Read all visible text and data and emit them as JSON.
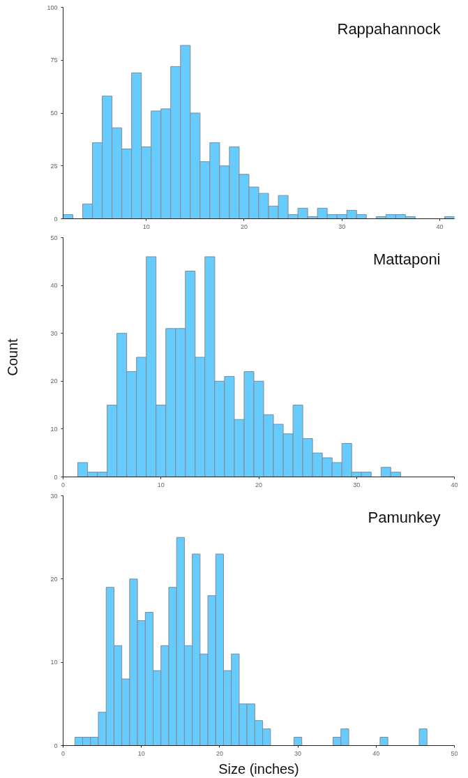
{
  "chart_data": [
    {
      "type": "histogram",
      "title": "Rappahannock",
      "color": "#66ccff",
      "bins": [
        1.5,
        2.5,
        3.5,
        4.5,
        5.5,
        6.5,
        7.5,
        8.5,
        9.5,
        10.5,
        11.5,
        12.5,
        13.5,
        14.5,
        15.5,
        16.5,
        17.5,
        18.5,
        19.5,
        20.5,
        21.5,
        22.5,
        23.5,
        24.5,
        25.5,
        26.5,
        27.5,
        28.5,
        29.5,
        30.5,
        31.5,
        32.5,
        33.5,
        34.5,
        35.5,
        36.5,
        37.5,
        38.5,
        39.5,
        40.5,
        41.5
      ],
      "values": [
        2,
        0,
        7,
        36,
        58,
        43,
        33,
        69,
        34,
        51,
        52,
        72,
        82,
        50,
        27,
        36,
        25,
        34,
        21,
        15,
        12,
        6,
        11,
        2,
        5,
        1,
        5,
        2,
        2,
        4,
        2,
        0,
        1,
        2,
        2,
        1,
        0,
        0,
        0,
        1
      ],
      "xlim": [
        1.5,
        41.5
      ],
      "xticks": [
        10,
        20,
        30,
        40
      ],
      "ylim": [
        0,
        100
      ],
      "yticks": [
        0,
        25,
        50,
        75,
        100
      ],
      "grid": false
    },
    {
      "type": "histogram",
      "title": "Mattaponi",
      "ylabel": "Count",
      "color": "#66ccff",
      "bins": [
        1.5,
        2.5,
        3.5,
        4.5,
        5.5,
        6.5,
        7.5,
        8.5,
        9.5,
        10.5,
        11.5,
        12.5,
        13.5,
        14.5,
        15.5,
        16.5,
        17.5,
        18.5,
        19.5,
        20.5,
        21.5,
        22.5,
        23.5,
        24.5,
        25.5,
        26.5,
        27.5,
        28.5,
        29.5,
        30.5,
        31.5,
        32.5,
        33.5,
        34.5
      ],
      "values": [
        3,
        1,
        1,
        15,
        30,
        22,
        25,
        46,
        15,
        31,
        31,
        43,
        25,
        46,
        20,
        21,
        12,
        22,
        20,
        13,
        11,
        9,
        15,
        8,
        5,
        4,
        3,
        7,
        1,
        1,
        0,
        2,
        1
      ],
      "xlim": [
        0,
        40
      ],
      "xticks": [
        0,
        10,
        20,
        30,
        40
      ],
      "ylim": [
        0,
        50
      ],
      "yticks": [
        0,
        10,
        20,
        30,
        40,
        50
      ],
      "grid": false
    },
    {
      "type": "histogram",
      "title": "Pamunkey",
      "xlabel": "Size (inches)",
      "color": "#66ccff",
      "bins": [
        1.5,
        2.5,
        3.5,
        4.5,
        5.5,
        6.5,
        7.5,
        8.5,
        9.5,
        10.5,
        11.5,
        12.5,
        13.5,
        14.5,
        15.5,
        16.5,
        17.5,
        18.5,
        19.5,
        20.5,
        21.5,
        22.5,
        23.5,
        24.5,
        25.5,
        26.5,
        27.5,
        28.5,
        29.5,
        30.5,
        31.5,
        32.5,
        33.5,
        34.5,
        35.5,
        36.5,
        37.5,
        38.5,
        39.5,
        40.5,
        41.5,
        42.5,
        43.5,
        44.5,
        45.5,
        46.5
      ],
      "values": [
        1,
        1,
        1,
        4,
        19,
        12,
        8,
        20,
        15,
        16,
        9,
        12,
        19,
        25,
        12,
        23,
        11,
        18,
        23,
        9,
        11,
        5,
        5,
        3,
        2,
        0,
        0,
        0,
        1,
        0,
        0,
        0,
        0,
        1,
        2,
        0,
        0,
        0,
        0,
        1,
        0,
        0,
        0,
        0,
        2
      ],
      "xlim": [
        0,
        50
      ],
      "xticks": [
        0,
        10,
        20,
        30,
        40,
        50
      ],
      "ylim": [
        0,
        30
      ],
      "yticks": [
        0,
        10,
        20,
        30
      ],
      "grid": false
    }
  ]
}
